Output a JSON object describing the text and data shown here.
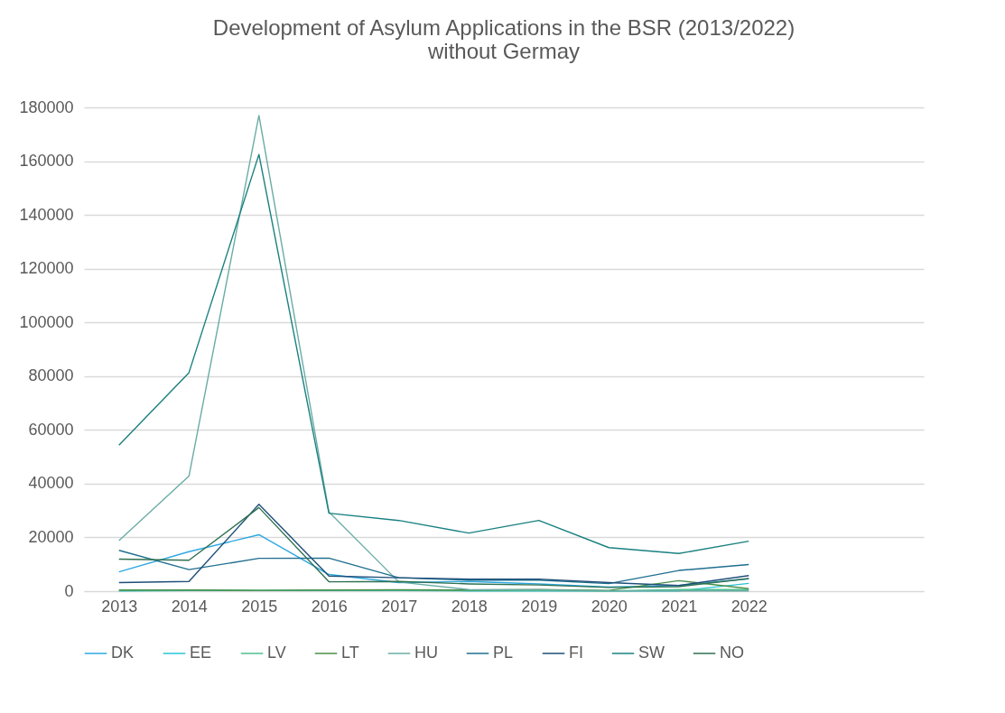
{
  "chart_data": {
    "type": "line",
    "title": "Development of Asylum Applications in the BSR (2013/2022)\nwithout Germay",
    "categories": [
      "2013",
      "2014",
      "2015",
      "2016",
      "2017",
      "2018",
      "2019",
      "2020",
      "2021",
      "2022",
      null,
      null
    ],
    "series": [
      {
        "name": "DK",
        "color": "#2ea8e0",
        "values": [
          7200,
          14700,
          21000,
          6200,
          3200,
          3600,
          2700,
          1500,
          2100,
          4600,
          null,
          null
        ]
      },
      {
        "name": "EE",
        "color": "#27c4d4",
        "values": [
          100,
          200,
          200,
          200,
          200,
          100,
          100,
          100,
          100,
          2900,
          null,
          null
        ]
      },
      {
        "name": "LV",
        "color": "#4fbf8f",
        "values": [
          200,
          400,
          300,
          400,
          400,
          200,
          200,
          100,
          600,
          600,
          null,
          null
        ]
      },
      {
        "name": "LT",
        "color": "#4a8f4a",
        "values": [
          400,
          400,
          300,
          400,
          500,
          400,
          600,
          300,
          3900,
          900,
          null,
          null
        ]
      },
      {
        "name": "HU",
        "color": "#6aaca5",
        "values": [
          18800,
          42800,
          177000,
          29500,
          3400,
          600,
          500,
          100,
          100,
          100,
          null,
          null
        ]
      },
      {
        "name": "PL",
        "color": "#1f6f8f",
        "values": [
          15200,
          8000,
          12200,
          12300,
          5000,
          4100,
          4100,
          2800,
          7700,
          9900,
          null,
          null
        ]
      },
      {
        "name": "FI",
        "color": "#1f4e79",
        "values": [
          3200,
          3600,
          32300,
          5600,
          5000,
          4500,
          4500,
          3200,
          2100,
          5800,
          null,
          null
        ]
      },
      {
        "name": "SW",
        "color": "#1a8080",
        "values": [
          54300,
          81300,
          162500,
          29000,
          26300,
          21600,
          26300,
          16200,
          14000,
          18600,
          null,
          null
        ]
      },
      {
        "name": "NO",
        "color": "#2e7050",
        "values": [
          11900,
          11500,
          31100,
          3500,
          3600,
          2700,
          2300,
          1400,
          1700,
          4700,
          null,
          null
        ]
      }
    ],
    "ylim": [
      0,
      180000
    ],
    "yticks": [
      0,
      20000,
      40000,
      60000,
      80000,
      100000,
      120000,
      140000,
      160000,
      180000
    ],
    "grid": "y",
    "legend": "bottom",
    "marker": "none"
  }
}
